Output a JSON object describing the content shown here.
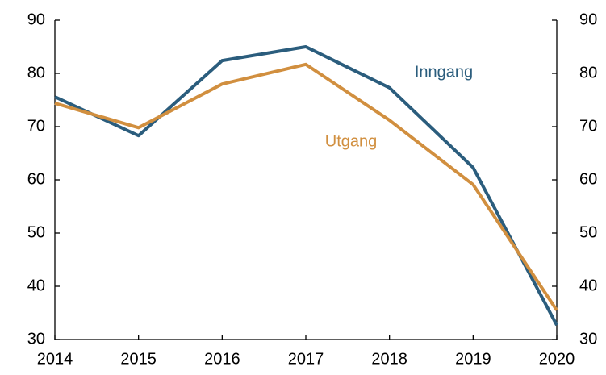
{
  "chart_data": {
    "type": "line",
    "x": [
      2014,
      2015,
      2016,
      2017,
      2018,
      2019,
      2020
    ],
    "series": [
      {
        "name": "Inngang",
        "color": "#2b5d7d",
        "values": [
          75.6,
          68.3,
          82.4,
          85.0,
          77.3,
          62.3,
          32.7
        ]
      },
      {
        "name": "Utgang",
        "color": "#d18f3f",
        "values": [
          74.4,
          69.8,
          78.0,
          81.7,
          71.2,
          59.1,
          35.5
        ]
      }
    ],
    "xlim": [
      2014,
      2020
    ],
    "xticks": [
      2014,
      2015,
      2016,
      2017,
      2018,
      2019,
      2020
    ],
    "ylim": [
      30,
      90
    ],
    "yticks": [
      30,
      40,
      50,
      60,
      70,
      80,
      90
    ],
    "y2lim": [
      30,
      90
    ],
    "y2ticks": [
      30,
      40,
      50,
      60,
      70,
      80,
      90
    ]
  }
}
